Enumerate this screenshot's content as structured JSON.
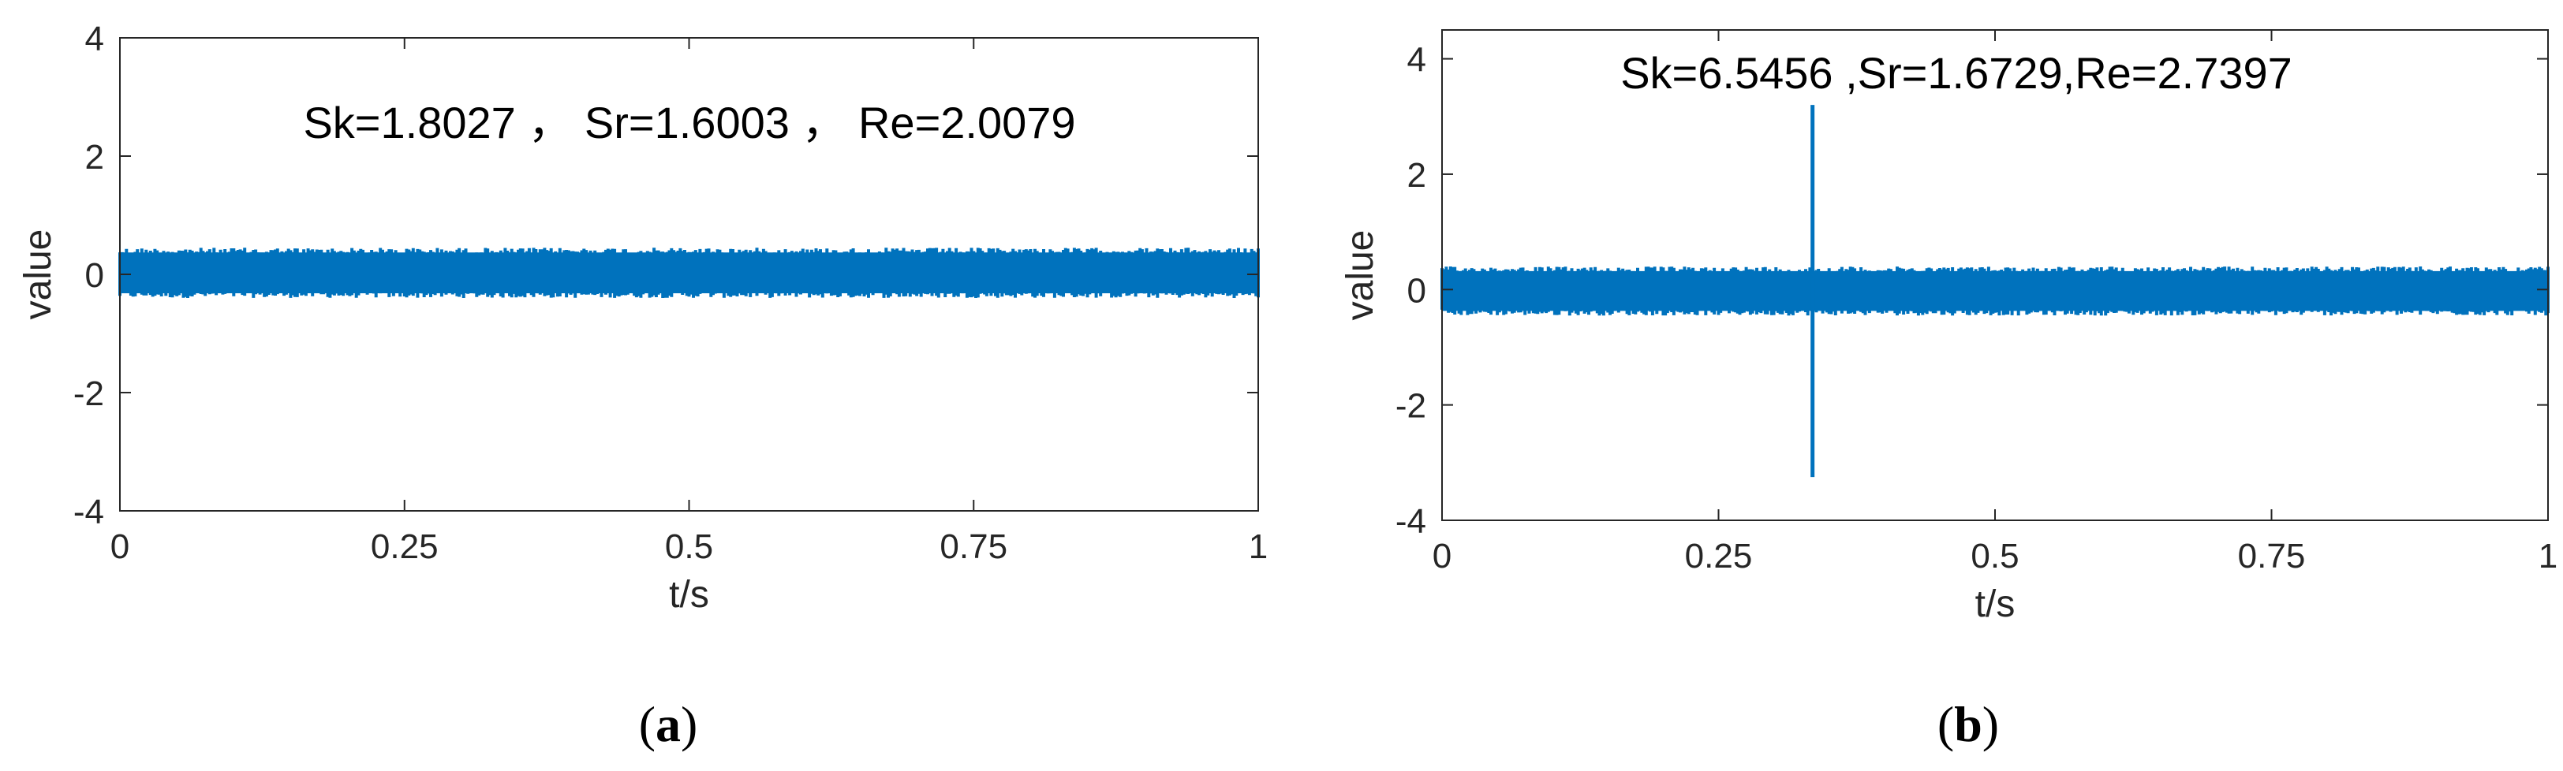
{
  "chart_data": [
    {
      "type": "line",
      "panel": "a",
      "caption_open": "(",
      "caption_letter": "a",
      "caption_close": ")",
      "annotation": "Sk=1.8027 ， Sr=1.6003 ， Re=2.0079",
      "xlabel": "t/s",
      "ylabel": "value",
      "xlim": [
        0,
        1
      ],
      "ylim": [
        -4,
        4
      ],
      "xticks": [
        0,
        0.25,
        0.5,
        0.75,
        1
      ],
      "xtick_labels": [
        "0",
        "0.25",
        "0.5",
        "0.75",
        "1"
      ],
      "yticks": [
        -4,
        -2,
        0,
        2,
        4
      ],
      "ytick_labels": [
        "-4",
        "-2",
        "0",
        "2",
        "4"
      ],
      "grid": false,
      "color": "#0072BD",
      "series": [
        {
          "noise_band": [
            -0.4,
            0.45
          ]
        }
      ]
    },
    {
      "type": "line",
      "panel": "b",
      "caption_open": "(",
      "caption_letter": "b",
      "caption_close": ")",
      "annotation": "Sk=6.5456 ,Sr=1.6729,Re=2.7397",
      "xlabel": "t/s",
      "ylabel": "value",
      "xlim": [
        0,
        1
      ],
      "ylim": [
        -4,
        4.5
      ],
      "xticks": [
        0,
        0.25,
        0.5,
        0.75,
        1
      ],
      "xtick_labels": [
        "0",
        "0.25",
        "0.5",
        "0.75",
        "1"
      ],
      "yticks": [
        -4,
        -2,
        0,
        2,
        4
      ],
      "ytick_labels": [
        "-4",
        "-2",
        "0",
        "2",
        "4"
      ],
      "grid": false,
      "color": "#0072BD",
      "series": [
        {
          "noise_band": [
            -0.45,
            0.4
          ],
          "spike": {
            "t": 0.335,
            "max": 3.2,
            "min": -3.25
          }
        }
      ]
    }
  ]
}
